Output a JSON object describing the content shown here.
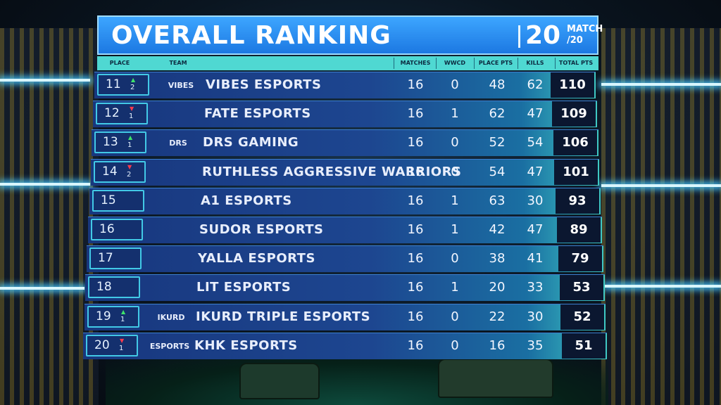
{
  "header": {
    "title": "OVERALL RANKING",
    "match_number": "20",
    "match_label_top": "MATCH",
    "match_label_bottom": "/20"
  },
  "columns": {
    "place": "PLACE",
    "team": "TEAM",
    "matches": "MATCHES",
    "wwcd": "WWCD",
    "place_pts": "PLACE PTS",
    "kills": "KILLS",
    "total_pts": "TOTAL PTS"
  },
  "colors": {
    "header_blue": "#1c78e2",
    "column_header": "#4fd8d2",
    "row_blue": "#1d4690",
    "up": "#3ee36a",
    "down": "#ff3b4c"
  },
  "rows": [
    {
      "place": "11",
      "trend": "up",
      "change": "2",
      "logo_icon": "vibes-logo-icon",
      "logo_text": "VIBES",
      "team": "VIBES ESPORTS",
      "matches": "16",
      "wwcd": "0",
      "place_pts": "48",
      "kills": "62",
      "total": "110"
    },
    {
      "place": "12",
      "trend": "down",
      "change": "1",
      "logo_icon": "fate-logo-icon",
      "logo_text": "",
      "team": "FATE ESPORTS",
      "matches": "16",
      "wwcd": "1",
      "place_pts": "62",
      "kills": "47",
      "total": "109"
    },
    {
      "place": "13",
      "trend": "up",
      "change": "1",
      "logo_icon": "drs-logo-icon",
      "logo_text": "DRS",
      "team": "DRS GAMING",
      "matches": "16",
      "wwcd": "0",
      "place_pts": "52",
      "kills": "54",
      "total": "106"
    },
    {
      "place": "14",
      "trend": "down",
      "change": "2",
      "logo_icon": "raw-logo-icon",
      "logo_text": "",
      "team": "RUTHLESS AGGRESSIVE WARRIORS",
      "matches": "16",
      "wwcd": "0",
      "place_pts": "54",
      "kills": "47",
      "total": "101"
    },
    {
      "place": "15",
      "trend": "",
      "change": "",
      "logo_icon": "a1-logo-icon",
      "logo_text": "",
      "team": "A1 ESPORTS",
      "matches": "16",
      "wwcd": "1",
      "place_pts": "63",
      "kills": "30",
      "total": "93"
    },
    {
      "place": "16",
      "trend": "",
      "change": "",
      "logo_icon": "sudor-logo-icon",
      "logo_text": "",
      "team": "SUDOR ESPORTS",
      "matches": "16",
      "wwcd": "1",
      "place_pts": "42",
      "kills": "47",
      "total": "89"
    },
    {
      "place": "17",
      "trend": "",
      "change": "",
      "logo_icon": "yalla-logo-icon",
      "logo_text": "",
      "team": "YALLA ESPORTS",
      "matches": "16",
      "wwcd": "0",
      "place_pts": "38",
      "kills": "41",
      "total": "79"
    },
    {
      "place": "18",
      "trend": "",
      "change": "",
      "logo_icon": "lit-logo-icon",
      "logo_text": "",
      "team": "LIT ESPORTS",
      "matches": "16",
      "wwcd": "1",
      "place_pts": "20",
      "kills": "33",
      "total": "53"
    },
    {
      "place": "19",
      "trend": "up",
      "change": "1",
      "logo_icon": "ikurd-logo-icon",
      "logo_text": "IKURD",
      "team": "IKURD TRIPLE ESPORTS",
      "matches": "16",
      "wwcd": "0",
      "place_pts": "22",
      "kills": "30",
      "total": "52"
    },
    {
      "place": "20",
      "trend": "down",
      "change": "1",
      "logo_icon": "khk-logo-icon",
      "logo_text": "ESPORTS",
      "team": "KHK ESPORTS",
      "matches": "16",
      "wwcd": "0",
      "place_pts": "16",
      "kills": "35",
      "total": "51"
    }
  ]
}
